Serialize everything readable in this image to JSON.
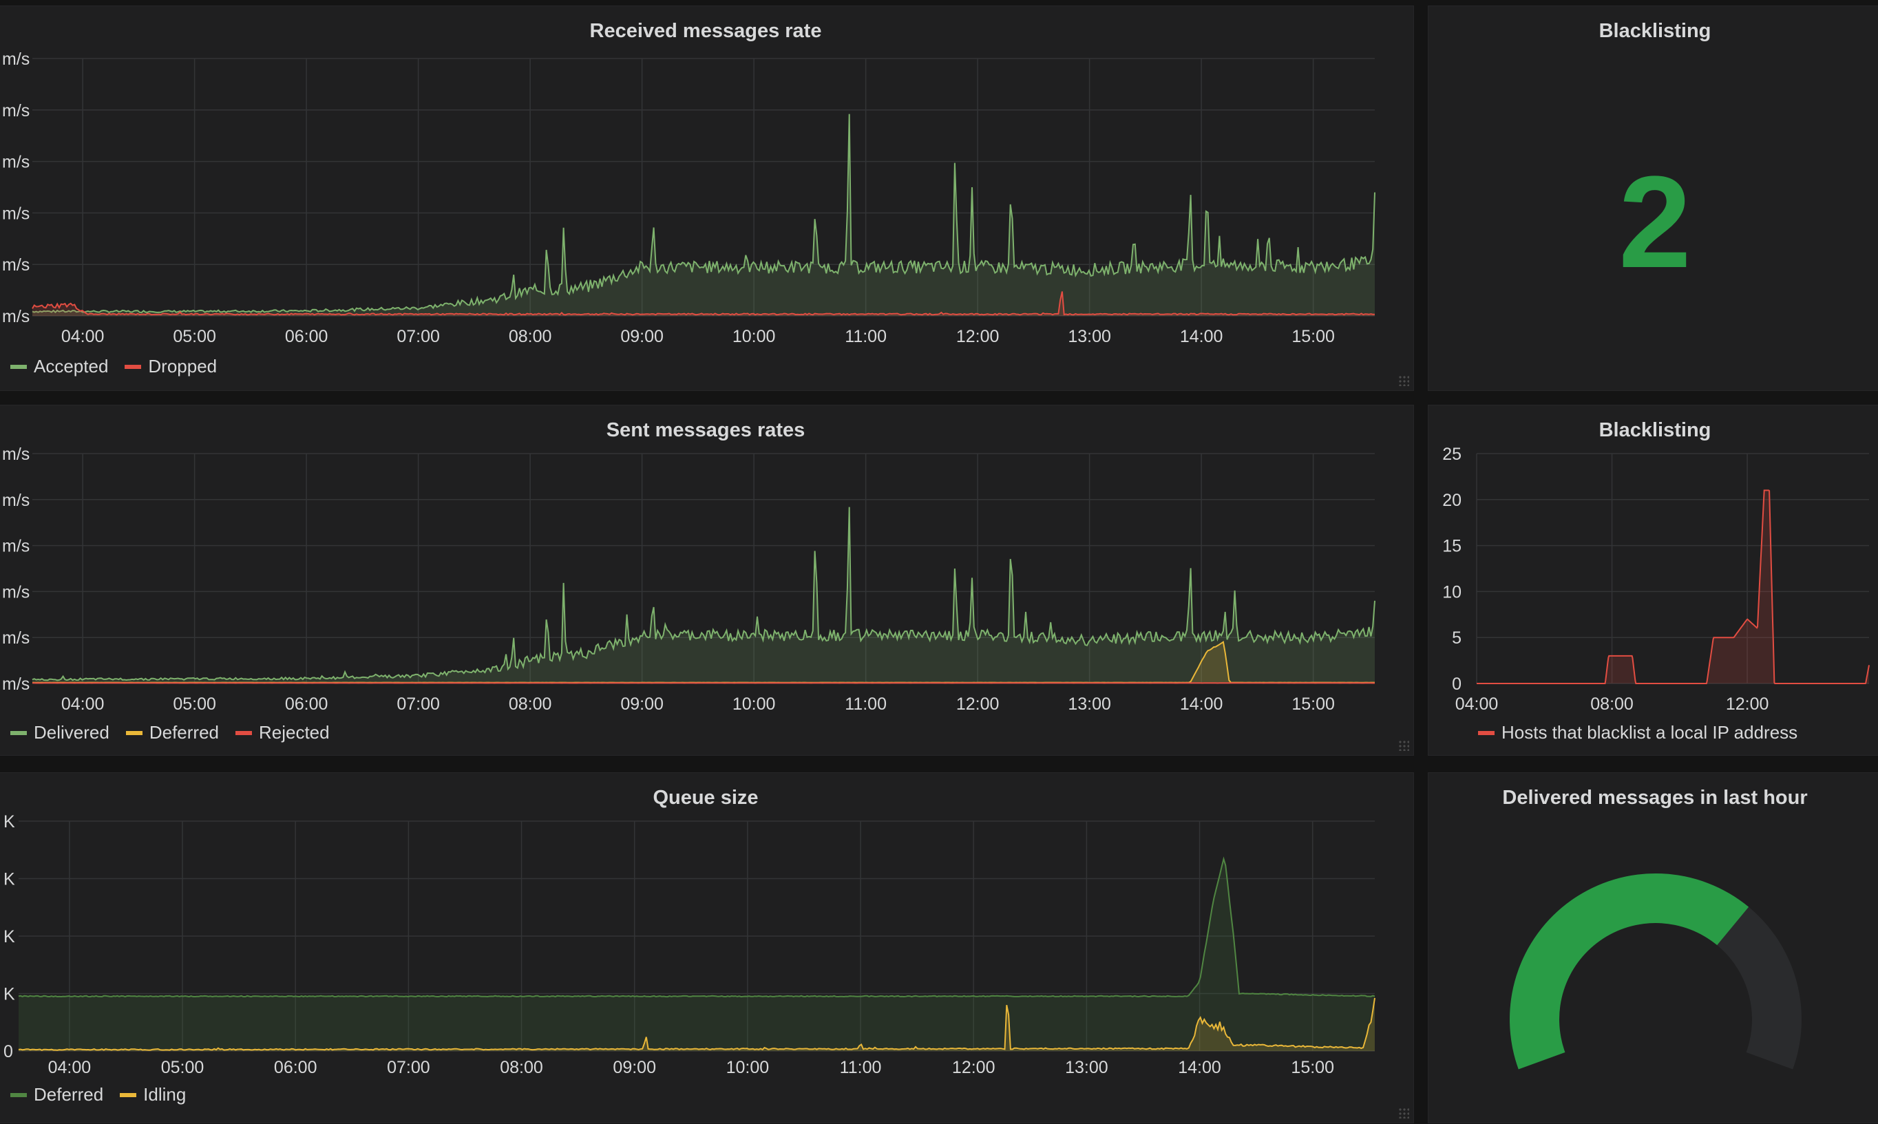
{
  "panels": {
    "received": {
      "title": "Received messages rate"
    },
    "sent": {
      "title": "Sent messages rates"
    },
    "queue": {
      "title": "Queue size"
    },
    "blacklist_stat": {
      "title": "Blacklisting",
      "value": "2",
      "color": "#299c46"
    },
    "blacklist_graph": {
      "title": "Blacklisting"
    },
    "gauge": {
      "title": "Delivered messages in last hour",
      "fill_fraction": 0.68,
      "color": "#299c46",
      "track_color": "#2a2b2d"
    }
  },
  "colors": {
    "green": "#7eb26d",
    "red": "#e24d42",
    "yellow": "#eab839",
    "dark_green": "#508642"
  },
  "chart_data": [
    {
      "id": "received",
      "type": "area",
      "title": "Received messages rate",
      "x_ticks": [
        "04:00",
        "05:00",
        "06:00",
        "07:00",
        "08:00",
        "09:00",
        "10:00",
        "11:00",
        "12:00",
        "13:00",
        "14:00",
        "15:00"
      ],
      "y_ticks": [
        "m/s",
        "m/s",
        "m/s",
        "m/s",
        "m/s",
        "m/s"
      ],
      "ylim": [
        0,
        5
      ],
      "legend": [
        {
          "name": "Accepted",
          "color": "#7eb26d"
        },
        {
          "name": "Dropped",
          "color": "#e24d42"
        }
      ],
      "series": [
        {
          "name": "Accepted",
          "color": "#7eb26d",
          "baseline": [
            [
              3.5,
              0.08
            ],
            [
              5,
              0.08
            ],
            [
              6,
              0.09
            ],
            [
              7,
              0.14
            ],
            [
              7.7,
              0.3
            ],
            [
              8,
              0.45
            ],
            [
              8.5,
              0.5
            ],
            [
              9,
              0.9
            ],
            [
              10,
              0.9
            ],
            [
              11,
              0.9
            ],
            [
              12,
              0.9
            ],
            [
              13,
              0.85
            ],
            [
              14,
              0.95
            ],
            [
              15,
              0.9
            ],
            [
              15.55,
              1.0
            ]
          ],
          "spikes": [
            [
              7.85,
              0.85
            ],
            [
              8.15,
              1.6
            ],
            [
              8.3,
              1.8
            ],
            [
              9.1,
              1.9
            ],
            [
              10.55,
              2.2
            ],
            [
              10.85,
              4.4
            ],
            [
              11.8,
              3.5
            ],
            [
              11.95,
              2.5
            ],
            [
              12.3,
              2.8
            ],
            [
              13.4,
              1.7
            ],
            [
              13.9,
              2.7
            ],
            [
              14.05,
              2.8
            ],
            [
              14.6,
              1.8
            ],
            [
              15.55,
              2.4
            ]
          ]
        },
        {
          "name": "Dropped",
          "color": "#e24d42",
          "baseline": [
            [
              3.5,
              0.15
            ],
            [
              3.9,
              0.2
            ],
            [
              4.05,
              0.03
            ],
            [
              15.55,
              0.03
            ]
          ],
          "spikes": [
            [
              12.75,
              0.65
            ]
          ]
        }
      ]
    },
    {
      "id": "sent",
      "type": "area",
      "title": "Sent messages rates",
      "x_ticks": [
        "04:00",
        "05:00",
        "06:00",
        "07:00",
        "08:00",
        "09:00",
        "10:00",
        "11:00",
        "12:00",
        "13:00",
        "14:00",
        "15:00"
      ],
      "y_ticks": [
        "m/s",
        "m/s",
        "m/s",
        "m/s",
        "m/s",
        "m/s"
      ],
      "ylim": [
        0,
        5
      ],
      "legend": [
        {
          "name": "Delivered",
          "color": "#7eb26d"
        },
        {
          "name": "Deferred",
          "color": "#eab839"
        },
        {
          "name": "Rejected",
          "color": "#e24d42"
        }
      ],
      "series": [
        {
          "name": "Delivered",
          "color": "#7eb26d",
          "baseline": [
            [
              3.5,
              0.08
            ],
            [
              6,
              0.1
            ],
            [
              7,
              0.15
            ],
            [
              7.7,
              0.3
            ],
            [
              8,
              0.45
            ],
            [
              8.5,
              0.6
            ],
            [
              9,
              1.0
            ],
            [
              10,
              1.0
            ],
            [
              11,
              1.0
            ],
            [
              12,
              1.0
            ],
            [
              13,
              0.9
            ],
            [
              14,
              1.0
            ],
            [
              15,
              0.95
            ],
            [
              15.55,
              1.1
            ]
          ],
          "spikes": [
            [
              7.85,
              1.1
            ],
            [
              8.15,
              1.7
            ],
            [
              8.3,
              2.3
            ],
            [
              9.1,
              1.8
            ],
            [
              10.55,
              3.6
            ],
            [
              10.85,
              4.3
            ],
            [
              11.8,
              2.9
            ],
            [
              11.95,
              2.3
            ],
            [
              12.3,
              3.6
            ],
            [
              13.9,
              2.9
            ],
            [
              14.3,
              2.1
            ],
            [
              15.55,
              1.8
            ]
          ]
        },
        {
          "name": "Deferred",
          "color": "#eab839",
          "baseline": [
            [
              3.5,
              0.02
            ],
            [
              13.9,
              0.02
            ],
            [
              14.05,
              0.7
            ],
            [
              14.2,
              0.9
            ],
            [
              14.25,
              0.02
            ],
            [
              15.55,
              0.02
            ]
          ],
          "spikes": []
        },
        {
          "name": "Rejected",
          "color": "#e24d42",
          "baseline": [
            [
              3.5,
              0.01
            ],
            [
              15.55,
              0.01
            ]
          ],
          "spikes": []
        }
      ]
    },
    {
      "id": "queue",
      "type": "area",
      "title": "Queue size",
      "x_ticks": [
        "04:00",
        "05:00",
        "06:00",
        "07:00",
        "08:00",
        "09:00",
        "10:00",
        "11:00",
        "12:00",
        "13:00",
        "14:00",
        "15:00"
      ],
      "y_ticks": [
        "0",
        "K",
        "K",
        "K",
        "K"
      ],
      "ylim": [
        0,
        4
      ],
      "legend": [
        {
          "name": "Deferred",
          "color": "#508642"
        },
        {
          "name": "Idling",
          "color": "#eab839"
        }
      ],
      "series": [
        {
          "name": "Deferred",
          "color": "#508642",
          "baseline": [
            [
              3.55,
              0.95
            ],
            [
              13.9,
              0.95
            ],
            [
              14.0,
              1.2
            ],
            [
              14.12,
              2.6
            ],
            [
              14.22,
              3.4
            ],
            [
              14.3,
              2.0
            ],
            [
              14.35,
              1.0
            ],
            [
              15.55,
              0.95
            ]
          ],
          "spikes": []
        },
        {
          "name": "Idling",
          "color": "#eab839",
          "baseline": [
            [
              3.55,
              0.02
            ],
            [
              13.9,
              0.04
            ],
            [
              14.0,
              0.5
            ],
            [
              14.2,
              0.4
            ],
            [
              14.3,
              0.1
            ],
            [
              15.45,
              0.05
            ],
            [
              15.55,
              0.8
            ]
          ],
          "spikes": [
            [
              9.1,
              0.3
            ],
            [
              12.3,
              1.2
            ],
            [
              11.0,
              0.15
            ]
          ]
        }
      ]
    },
    {
      "id": "blacklist",
      "type": "area",
      "title": "Blacklisting",
      "x_ticks": [
        "04:00",
        "08:00",
        "12:00"
      ],
      "y_ticks": [
        "0",
        "5",
        "10",
        "15",
        "20",
        "25"
      ],
      "ylim": [
        0,
        25
      ],
      "legend": [
        {
          "name": "Hosts that blacklist a local IP address",
          "color": "#e24d42"
        }
      ],
      "series": [
        {
          "name": "Hosts that blacklist a local IP address",
          "color": "#e24d42",
          "baseline": [
            [
              4,
              0
            ],
            [
              7.8,
              0
            ],
            [
              7.9,
              3
            ],
            [
              8.6,
              3
            ],
            [
              8.7,
              0
            ],
            [
              10.8,
              0
            ],
            [
              11.0,
              5
            ],
            [
              11.6,
              5
            ],
            [
              11.8,
              6
            ],
            [
              12.0,
              7
            ],
            [
              12.3,
              6
            ],
            [
              12.5,
              21
            ],
            [
              12.65,
              21
            ],
            [
              12.8,
              0
            ],
            [
              15.5,
              0
            ],
            [
              15.6,
              2
            ]
          ],
          "spikes": []
        }
      ]
    }
  ]
}
